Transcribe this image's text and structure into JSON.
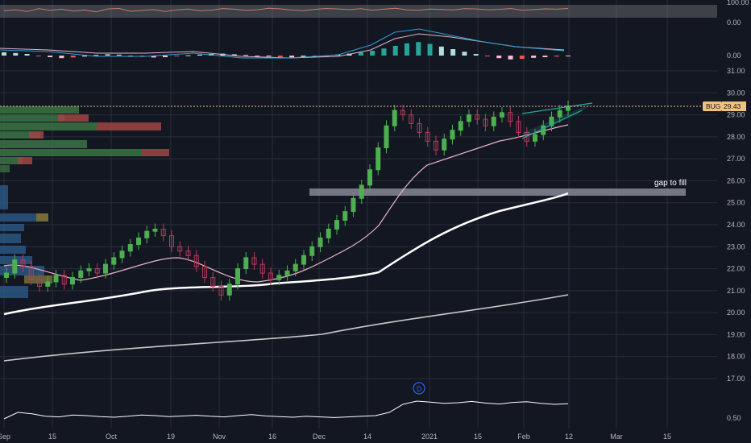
{
  "symbol": "BUG",
  "symbol_price_label": "29.43",
  "annotation": "gap to fill",
  "event_marker": "D",
  "colors": {
    "background": "#131722",
    "grid": "#2a2e39",
    "up": "#26a69a",
    "down": "#ef5350",
    "up_candle": "#4caf50",
    "down_candle": "#b83a5a",
    "ma_short": "#e8b4c8",
    "ma_mid": "#ffffff",
    "ma_long": "#c8c8c8",
    "price_line": "#f2c27a",
    "label_bg": "#f0c27b"
  },
  "chart_data": [
    {
      "type": "line",
      "panel": "rsi",
      "ylim": [
        0,
        100
      ],
      "yticks": [
        "100.00",
        "0.00"
      ],
      "series": [
        {
          "values": [
            55,
            62,
            48,
            70,
            58,
            66,
            52,
            60,
            45,
            68,
            72,
            50,
            57,
            63,
            49,
            61,
            67,
            54,
            59,
            71,
            66,
            58,
            62,
            74,
            69,
            60,
            55,
            65,
            72,
            68,
            63,
            70,
            59,
            66,
            73,
            61,
            58,
            67,
            64,
            60,
            70,
            68,
            62,
            65,
            71,
            59,
            63,
            69,
            66,
            72
          ]
        }
      ]
    },
    {
      "type": "bar",
      "panel": "macd",
      "yticks": [
        "0.00"
      ],
      "series": [
        {
          "values": [
            0.1,
            0.08,
            0.05,
            -0.02,
            -0.05,
            -0.08,
            -0.06,
            -0.03,
            0.02,
            0.04,
            0.03,
            -0.01,
            -0.04,
            -0.06,
            -0.05,
            -0.02,
            0.01,
            0.03,
            0.05,
            0.06,
            0.04,
            0.02,
            -0.01,
            -0.03,
            -0.05,
            -0.06,
            -0.04,
            -0.02,
            0.01,
            0.03,
            0.06,
            0.1,
            0.15,
            0.22,
            0.3,
            0.38,
            0.42,
            0.36,
            0.28,
            0.2,
            0.12,
            0.05,
            -0.02,
            -0.08,
            -0.12,
            -0.1,
            -0.07,
            -0.05,
            -0.03,
            -0.02
          ]
        }
      ]
    },
    {
      "type": "candlestick",
      "panel": "price",
      "ylim": [
        16.5,
        31.2
      ],
      "yticks": [
        "31.00",
        "30.00",
        "29.00",
        "28.00",
        "27.00",
        "26.00",
        "25.00",
        "24.00",
        "23.00",
        "22.00",
        "21.00",
        "20.00",
        "19.00",
        "18.00",
        "17.00"
      ],
      "x_labels": [
        "Sep",
        "15",
        "Oct",
        "19",
        "Nov",
        "16",
        "Dec",
        "14",
        "2021",
        "15",
        "Feb",
        "12",
        "Mar",
        "15"
      ],
      "closes": [
        21.8,
        22.4,
        22.1,
        21.5,
        21.2,
        21.4,
        21.7,
        21.3,
        21.6,
        21.9,
        22.0,
        21.8,
        22.2,
        22.5,
        22.8,
        23.1,
        23.4,
        23.7,
        23.8,
        23.5,
        23.0,
        22.8,
        22.6,
        22.1,
        21.6,
        21.2,
        20.8,
        21.3,
        22.0,
        22.5,
        22.2,
        21.8,
        21.5,
        21.7,
        21.9,
        22.2,
        22.6,
        23.0,
        23.4,
        23.8,
        24.2,
        24.6,
        25.2,
        25.8,
        26.5,
        27.5,
        28.5,
        29.2,
        29.0,
        28.6,
        28.2,
        27.8,
        27.4,
        27.9,
        28.3,
        28.7,
        29.0,
        28.8,
        28.5,
        28.9,
        29.1,
        28.7,
        28.2,
        27.8,
        28.1,
        28.5,
        28.9,
        29.2,
        29.4
      ]
    },
    {
      "type": "line",
      "panel": "lower",
      "yticks": [
        "0.50"
      ],
      "series": [
        {
          "values": [
            0.5,
            0.7,
            0.66,
            0.58,
            0.56,
            0.62,
            0.6,
            0.57,
            0.55,
            0.58,
            0.62,
            0.6,
            0.57,
            0.59,
            0.61,
            0.58,
            0.56,
            0.6,
            0.63,
            0.59,
            0.57,
            0.55,
            0.58,
            0.56,
            0.54,
            0.56,
            0.58,
            0.6,
            0.7,
            0.95,
            1.05,
            1.02,
            0.98,
            1.0,
            1.04,
            0.99,
            0.96,
            1.01,
            1.03,
            0.98,
            0.95,
            0.97
          ]
        }
      ]
    }
  ]
}
